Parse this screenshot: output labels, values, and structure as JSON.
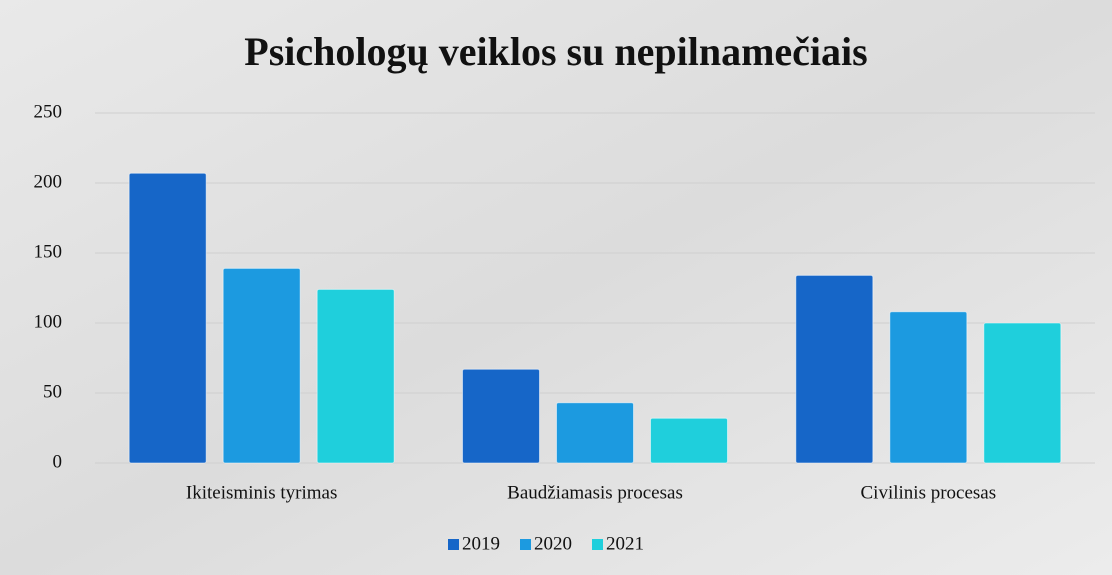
{
  "chart_data": {
    "type": "bar",
    "title": "Psichologų veiklos su nepilnamečiais",
    "categories": [
      "Ikiteisminis tyrimas",
      "Baudžiamasis procesas",
      "Civilinis procesas"
    ],
    "series": [
      {
        "name": "2019",
        "color": "#1666c8",
        "values": [
          207,
          67,
          134
        ]
      },
      {
        "name": "2020",
        "color": "#1c9ae0",
        "values": [
          139,
          43,
          108
        ]
      },
      {
        "name": "2021",
        "color": "#1fcfdc",
        "values": [
          124,
          32,
          100
        ]
      }
    ],
    "ylim": [
      0,
      250
    ],
    "yticks": [
      0,
      50,
      100,
      150,
      200,
      250
    ],
    "grid": true,
    "legend": "bottom"
  }
}
